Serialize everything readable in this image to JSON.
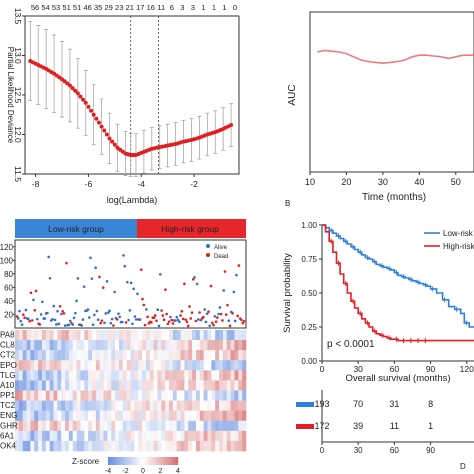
{
  "panels": {
    "A": {
      "chart_data": {
        "type": "line",
        "xlabel": "log(Lambda)",
        "ylabel": "Partial Likelihood Deviance",
        "top_labels": [
          "56",
          "54",
          "53",
          "51",
          "51",
          "46",
          "35",
          "29",
          "23",
          "21",
          "17",
          "16",
          "11",
          "6",
          "3",
          "3",
          "1",
          "1",
          "1",
          "0"
        ],
        "xticks": [
          "-8",
          "-6",
          "-4",
          "-2"
        ],
        "yticks": [
          "11.5",
          "12.0",
          "12.5",
          "13.0",
          "13.5"
        ],
        "xlim": [
          -8.4,
          -0.3
        ],
        "ylim": [
          11.5,
          13.5
        ],
        "vlines": [
          -4.4,
          -3.35
        ],
        "x": [
          -8.2,
          -7.9,
          -7.6,
          -7.3,
          -7.0,
          -6.7,
          -6.4,
          -6.1,
          -5.8,
          -5.5,
          -5.2,
          -4.9,
          -4.6,
          -4.4,
          -4.2,
          -3.9,
          -3.6,
          -3.3,
          -3.0,
          -2.7,
          -2.4,
          -2.1,
          -1.8,
          -1.5,
          -1.2,
          -0.9,
          -0.6
        ],
        "y": [
          12.93,
          12.88,
          12.83,
          12.77,
          12.7,
          12.62,
          12.52,
          12.4,
          12.25,
          12.1,
          11.95,
          11.83,
          11.76,
          11.74,
          11.74,
          11.78,
          11.82,
          11.84,
          11.86,
          11.88,
          11.91,
          11.93,
          11.96,
          12.0,
          12.03,
          12.07,
          12.12
        ],
        "err": [
          0.5,
          0.5,
          0.5,
          0.49,
          0.48,
          0.46,
          0.44,
          0.41,
          0.38,
          0.35,
          0.32,
          0.3,
          0.28,
          0.27,
          0.27,
          0.27,
          0.27,
          0.27,
          0.27,
          0.27,
          0.27,
          0.27,
          0.27,
          0.27,
          0.27,
          0.27,
          0.27
        ]
      }
    },
    "B": {
      "label": "B",
      "chart_data": {
        "type": "line",
        "xlabel": "Time (months)",
        "ylabel": "AUC",
        "xticks": [
          10,
          20,
          30,
          40,
          50
        ],
        "xlim": [
          10,
          55
        ],
        "ylim": [
          0.0,
          1.0
        ],
        "yticks": [
          "0.0",
          "0.2",
          "0.4",
          "0.6",
          "0.8",
          "1.0"
        ],
        "x": [
          12,
          14,
          16,
          18,
          20,
          22,
          24,
          26,
          28,
          30,
          32,
          34,
          36,
          38,
          40,
          42,
          44,
          46,
          48,
          50,
          52,
          54,
          55
        ],
        "y": [
          0.75,
          0.76,
          0.755,
          0.75,
          0.74,
          0.72,
          0.7,
          0.69,
          0.685,
          0.68,
          0.685,
          0.69,
          0.7,
          0.72,
          0.73,
          0.73,
          0.725,
          0.72,
          0.71,
          0.72,
          0.73,
          0.73,
          0.73
        ]
      }
    },
    "C": {
      "groups": [
        "Low-risk group",
        "High-risk group"
      ],
      "legend": [
        "Alive",
        "Dead"
      ],
      "yticks": [
        "20",
        "40",
        "60",
        "80",
        "100",
        "120"
      ],
      "genes": [
        "PA8",
        "CL8",
        "CT2",
        "EPO",
        "TLG",
        "A10",
        "PP1",
        "TC2",
        "ENG",
        "GHR",
        "6A1",
        "OK4"
      ],
      "zscore_label": "Z-score",
      "zscore_ticks": [
        "-4",
        "-2",
        "0",
        "2",
        "4"
      ],
      "colors": {
        "low": "#3a85d6",
        "high": "#e6262a",
        "alive": "#2f6fd0",
        "dead": "#e02020"
      }
    },
    "D": {
      "label": "D",
      "chart_data": {
        "type": "line",
        "xlabel": "Overall survival (months)",
        "ylabel": "Survival probability",
        "yticks": [
          "0.00",
          "0.25",
          "0.50",
          "0.75",
          "1.00"
        ],
        "xticks": [
          "0",
          "30",
          "60",
          "90",
          "120"
        ],
        "xlim": [
          0,
          126
        ],
        "ylim": [
          0,
          1
        ],
        "legend": [
          "Low-risk",
          "High-risk"
        ],
        "pvalue": "p < 0.0001",
        "series": [
          {
            "x": [
              0,
              3,
              6,
              9,
              12,
              15,
              18,
              21,
              24,
              27,
              30,
              33,
              36,
              39,
              42,
              45,
              48,
              51,
              54,
              57,
              60,
              63,
              66,
              69,
              72,
              75,
              78,
              81,
              84,
              87,
              90,
              95,
              100,
              105,
              110,
              115,
              118,
              122,
              126
            ],
            "y": [
              1.0,
              0.98,
              0.96,
              0.94,
              0.92,
              0.9,
              0.88,
              0.86,
              0.84,
              0.82,
              0.8,
              0.78,
              0.76,
              0.75,
              0.73,
              0.71,
              0.7,
              0.69,
              0.68,
              0.67,
              0.65,
              0.63,
              0.62,
              0.61,
              0.6,
              0.59,
              0.58,
              0.57,
              0.56,
              0.55,
              0.53,
              0.5,
              0.45,
              0.4,
              0.38,
              0.35,
              0.28,
              0.25,
              0.25
            ]
          },
          {
            "x": [
              0,
              3,
              6,
              9,
              12,
              15,
              18,
              21,
              24,
              27,
              30,
              33,
              36,
              39,
              42,
              45,
              48,
              51,
              54,
              57,
              60,
              63,
              66,
              69,
              72,
              75,
              78,
              81,
              84,
              85,
              126
            ],
            "y": [
              1.0,
              0.95,
              0.88,
              0.8,
              0.72,
              0.64,
              0.57,
              0.5,
              0.44,
              0.39,
              0.35,
              0.31,
              0.28,
              0.25,
              0.22,
              0.2,
              0.19,
              0.18,
              0.17,
              0.16,
              0.16,
              0.15,
              0.15,
              0.15,
              0.15,
              0.15,
              0.15,
              0.15,
              0.15,
              0.15,
              0.15
            ]
          }
        ],
        "risk_table": {
          "rows": [
            [
              "193",
              "70",
              "31",
              "8"
            ],
            [
              "172",
              "39",
              "11",
              "1"
            ]
          ],
          "xticks": [
            "0",
            "30",
            "60",
            "90"
          ]
        },
        "colors": {
          "low": "#2f80d8",
          "high": "#e11f26"
        }
      }
    }
  }
}
